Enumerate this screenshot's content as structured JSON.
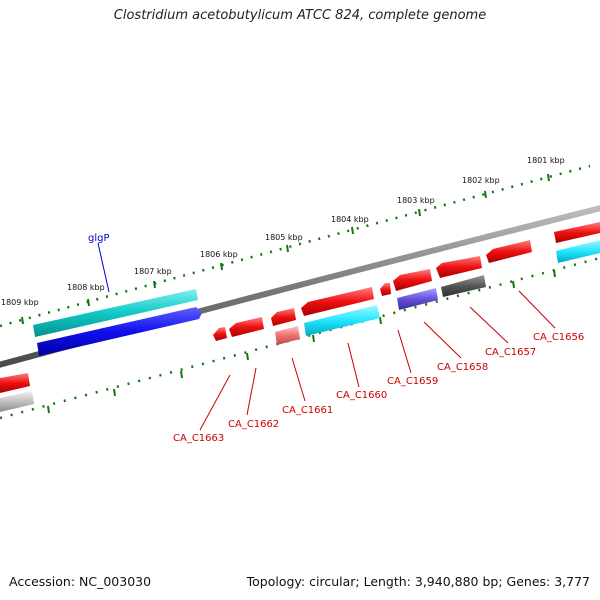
{
  "title": "Clostridium acetobutylicum ATCC 824, complete genome",
  "footer": {
    "accession": "Accession: NC_003030",
    "topology": "Topology: circular; Length: 3,940,880 bp; Genes: 3,777"
  },
  "colors": {
    "forward_track": "#00b3b3",
    "reverse_track": "#ee0000",
    "scale_ticks": "#117711",
    "backbone": "#777777",
    "label_red": "#cc0000",
    "label_blue": "#0000cc"
  },
  "scale_labels": {
    "k1801": "1801 kbp",
    "k1802": "1802 kbp",
    "k1803": "1803 kbp",
    "k1804": "1804 kbp",
    "k1805": "1805 kbp",
    "k1806": "1806 kbp",
    "k1807": "1807 kbp",
    "k1808": "1808 kbp",
    "k1809": "1809 kbp"
  },
  "gene_labels": {
    "glgP": "glgP",
    "CA_C1656": "CA_C1656",
    "CA_C1657": "CA_C1657",
    "CA_C1658": "CA_C1658",
    "CA_C1659": "CA_C1659",
    "CA_C1660": "CA_C1660",
    "CA_C1661": "CA_C1661",
    "CA_C1662": "CA_C1662",
    "CA_C1663": "CA_C1663"
  }
}
